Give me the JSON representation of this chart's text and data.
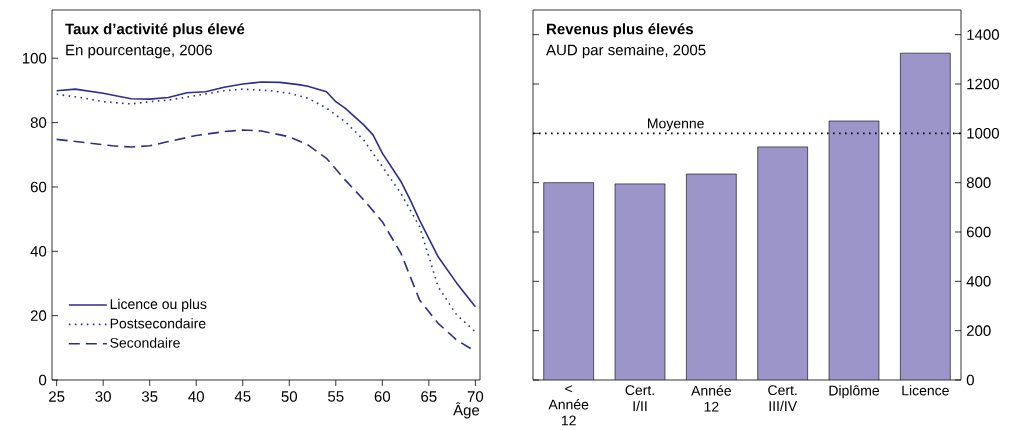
{
  "chart_data": [
    {
      "type": "line",
      "title": "Taux d’activité plus élevé",
      "subtitle": "En pourcentage, 2006",
      "xlabel": "Âge",
      "xlim": [
        24.5,
        70.5
      ],
      "ylim": [
        0,
        115
      ],
      "xticks": [
        25,
        30,
        35,
        40,
        45,
        50,
        55,
        60,
        65,
        70
      ],
      "yticks": [
        0,
        20,
        40,
        60,
        80,
        100
      ],
      "legend": "bottom left",
      "series": [
        {
          "name": "Licence ou plus",
          "color": "#2b2e8c",
          "line_style": "solid",
          "x": [
            25,
            27,
            30,
            33,
            35,
            37,
            39,
            41,
            43,
            45,
            47,
            49,
            51,
            52,
            54,
            55,
            56,
            58,
            59,
            60,
            62,
            63,
            64,
            66,
            68,
            70
          ],
          "values": [
            89.9,
            90.4,
            89.1,
            87.4,
            87.3,
            87.8,
            89.3,
            89.6,
            91.0,
            92.0,
            92.6,
            92.5,
            91.8,
            91.3,
            89.6,
            86.5,
            84.5,
            79.3,
            76.2,
            70.5,
            61.7,
            56.0,
            49.7,
            38.3,
            30.1,
            22.8
          ]
        },
        {
          "name": "Postsecondaire",
          "color": "#2b2e8c",
          "line_style": "dotted",
          "x": [
            25,
            28,
            30,
            33,
            35,
            37,
            40,
            43,
            45,
            48,
            50,
            52,
            54,
            56,
            58,
            60,
            62,
            64,
            66,
            68,
            70
          ],
          "values": [
            88.8,
            87.6,
            86.5,
            85.8,
            86.5,
            87.0,
            88.4,
            89.9,
            90.4,
            89.9,
            89.1,
            87.6,
            84.5,
            80.3,
            74.6,
            66.3,
            58.0,
            47.7,
            29.0,
            20.2,
            15.0
          ]
        },
        {
          "name": "Secondaire",
          "color": "#2b2e8c",
          "line_style": "dashed",
          "x": [
            25,
            28,
            31,
            33,
            35,
            37,
            40,
            43,
            45,
            47,
            50,
            52,
            54,
            56,
            58,
            60,
            62,
            64,
            66,
            68,
            69.5
          ],
          "values": [
            74.8,
            73.8,
            72.8,
            72.4,
            72.8,
            74.1,
            76.0,
            77.2,
            77.7,
            77.4,
            75.6,
            73.1,
            68.9,
            62.2,
            56.0,
            49.2,
            39.4,
            24.9,
            17.6,
            12.4,
            9.8
          ]
        }
      ]
    },
    {
      "type": "bar",
      "title": "Revenus plus élevés",
      "subtitle": "AUD par semaine, 2005",
      "categories": [
        "< Année 12",
        "Cert. I/II",
        "Année 12",
        "Cert. III/IV",
        "Diplôme",
        "Licence"
      ],
      "values": [
        800,
        795,
        835,
        945,
        1050,
        1325
      ],
      "color": "#9b95c9",
      "ylim": [
        0,
        1500
      ],
      "yticks": [
        0,
        200,
        400,
        600,
        800,
        1000,
        1200,
        1400
      ],
      "ref_lines": [
        {
          "axis": "y",
          "value": 1000,
          "label": "Moyenne",
          "color": "#000000",
          "line_style": "dotted"
        }
      ]
    }
  ]
}
